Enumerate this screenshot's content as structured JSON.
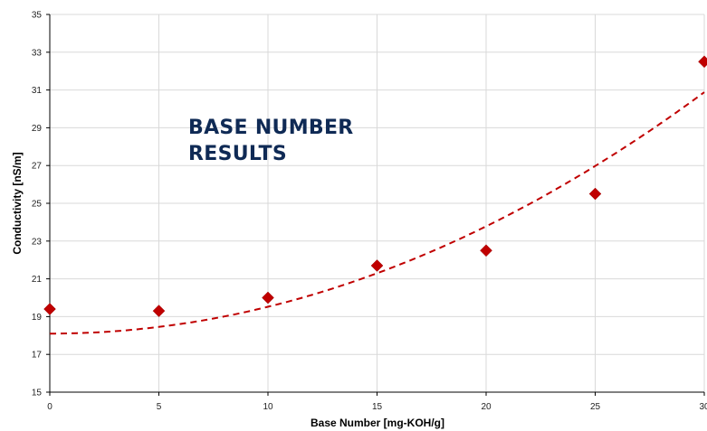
{
  "chart_data": {
    "type": "scatter",
    "title": "BASE NUMBER\nRESULTS",
    "xlabel": "Base Number [mg-KOH/g]",
    "ylabel": "Conductivity [nS/m]",
    "xlim": [
      0,
      30
    ],
    "ylim": [
      15,
      35
    ],
    "xticks": [
      "0",
      "5",
      "10",
      "15",
      "20",
      "25",
      "30"
    ],
    "yticks": [
      "15",
      "17",
      "19",
      "21",
      "23",
      "25",
      "27",
      "29",
      "31",
      "33",
      "35"
    ],
    "grid": true,
    "series": [
      {
        "marker": "diamond",
        "color": "#c00000",
        "points": [
          {
            "x": 0,
            "y": 19.4
          },
          {
            "x": 5,
            "y": 19.3
          },
          {
            "x": 10,
            "y": 20.0
          },
          {
            "x": 15,
            "y": 21.7
          },
          {
            "x": 20,
            "y": 22.5
          },
          {
            "x": 25,
            "y": 25.5
          },
          {
            "x": 30,
            "y": 32.5
          }
        ]
      }
    ],
    "trendline": {
      "type": "polynomial",
      "style": "dashed",
      "color": "#c00000",
      "coefficients": [
        18.1,
        0.0,
        0.0142
      ]
    }
  }
}
